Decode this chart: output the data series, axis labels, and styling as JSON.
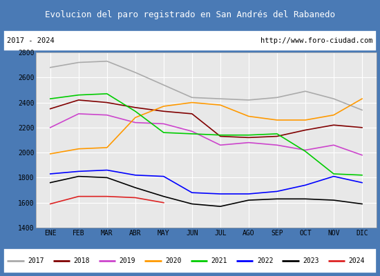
{
  "title": "Evolucion del paro registrado en San Andrés del Rabanedo",
  "subtitle_left": "2017 - 2024",
  "subtitle_right": "http://www.foro-ciudad.com",
  "title_bg_color": "#4a7ab5",
  "title_text_color": "#ffffff",
  "months": [
    "ENE",
    "FEB",
    "MAR",
    "ABR",
    "MAY",
    "JUN",
    "JUL",
    "AGO",
    "SEP",
    "OCT",
    "NOV",
    "DIC"
  ],
  "ylim": [
    1400,
    2800
  ],
  "yticks": [
    1400,
    1600,
    1800,
    2000,
    2200,
    2400,
    2600,
    2800
  ],
  "series": {
    "2017": {
      "color": "#aaaaaa",
      "values": [
        2680,
        2720,
        2730,
        2640,
        2540,
        2440,
        2430,
        2420,
        2440,
        2490,
        2430,
        2340
      ]
    },
    "2018": {
      "color": "#800000",
      "values": [
        2350,
        2420,
        2400,
        2360,
        2330,
        2310,
        2130,
        2120,
        2130,
        2180,
        2220,
        2200
      ]
    },
    "2019": {
      "color": "#cc44cc",
      "values": [
        2200,
        2310,
        2300,
        2240,
        2230,
        2170,
        2060,
        2080,
        2060,
        2020,
        2060,
        1980
      ]
    },
    "2020": {
      "color": "#ff9900",
      "values": [
        1990,
        2030,
        2040,
        2280,
        2370,
        2400,
        2380,
        2290,
        2260,
        2260,
        2300,
        2430
      ]
    },
    "2021": {
      "color": "#00cc00",
      "values": [
        2430,
        2460,
        2470,
        2330,
        2160,
        2150,
        2140,
        2140,
        2150,
        2010,
        1830,
        1820
      ]
    },
    "2022": {
      "color": "#0000ff",
      "values": [
        1830,
        1850,
        1860,
        1820,
        1810,
        1680,
        1670,
        1670,
        1690,
        1740,
        1810,
        1760
      ]
    },
    "2023": {
      "color": "#000000",
      "values": [
        1760,
        1810,
        1800,
        1720,
        1650,
        1590,
        1570,
        1620,
        1630,
        1630,
        1620,
        1590
      ]
    },
    "2024": {
      "color": "#dd2222",
      "values": [
        1590,
        1650,
        1650,
        1640,
        1600,
        null,
        null,
        null,
        null,
        null,
        null,
        null
      ]
    }
  },
  "legend_order": [
    "2017",
    "2018",
    "2019",
    "2020",
    "2021",
    "2022",
    "2023",
    "2024"
  ],
  "border_color": "#4a7ab5",
  "plot_bg_color": "#e8e8e8",
  "grid_color": "#ffffff"
}
